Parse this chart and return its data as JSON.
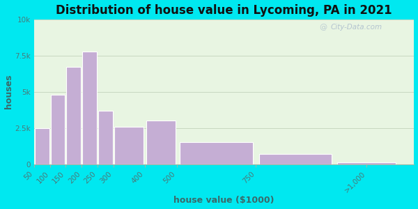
{
  "title": "Distribution of house value in Lycoming, PA in 2021",
  "xlabel": "house value ($1000)",
  "ylabel": "houses",
  "bar_labels": [
    "50",
    "100",
    "150",
    "200",
    "250",
    "300",
    "400",
    "500",
    "750",
    ">1,000"
  ],
  "bar_values": [
    2500,
    4800,
    6700,
    7800,
    3700,
    2600,
    3000,
    1500,
    700,
    100
  ],
  "bar_left_edges": [
    50,
    100,
    150,
    200,
    250,
    300,
    400,
    500,
    750,
    1000
  ],
  "bar_widths": [
    50,
    50,
    50,
    50,
    50,
    100,
    100,
    250,
    250,
    200
  ],
  "bar_color": "#c5aed4",
  "bar_edge_color": "#ffffff",
  "ylim": [
    0,
    10000
  ],
  "yticks": [
    0,
    2500,
    5000,
    7500,
    10000
  ],
  "ytick_labels": [
    "0",
    "2.5k",
    "5k",
    "7.5k",
    "10k"
  ],
  "xlim": [
    50,
    1250
  ],
  "xtick_positions": [
    50,
    100,
    150,
    200,
    250,
    300,
    400,
    500,
    750,
    1100
  ],
  "xtick_labels": [
    "50",
    "100",
    "150",
    "200",
    "250",
    "300",
    "400",
    "500",
    "750",
    ">1,000"
  ],
  "background_outer": "#00e8f0",
  "background_inner": "#e8f5e2",
  "title_fontsize": 12,
  "axis_label_fontsize": 9,
  "watermark_text": "City-Data.com"
}
